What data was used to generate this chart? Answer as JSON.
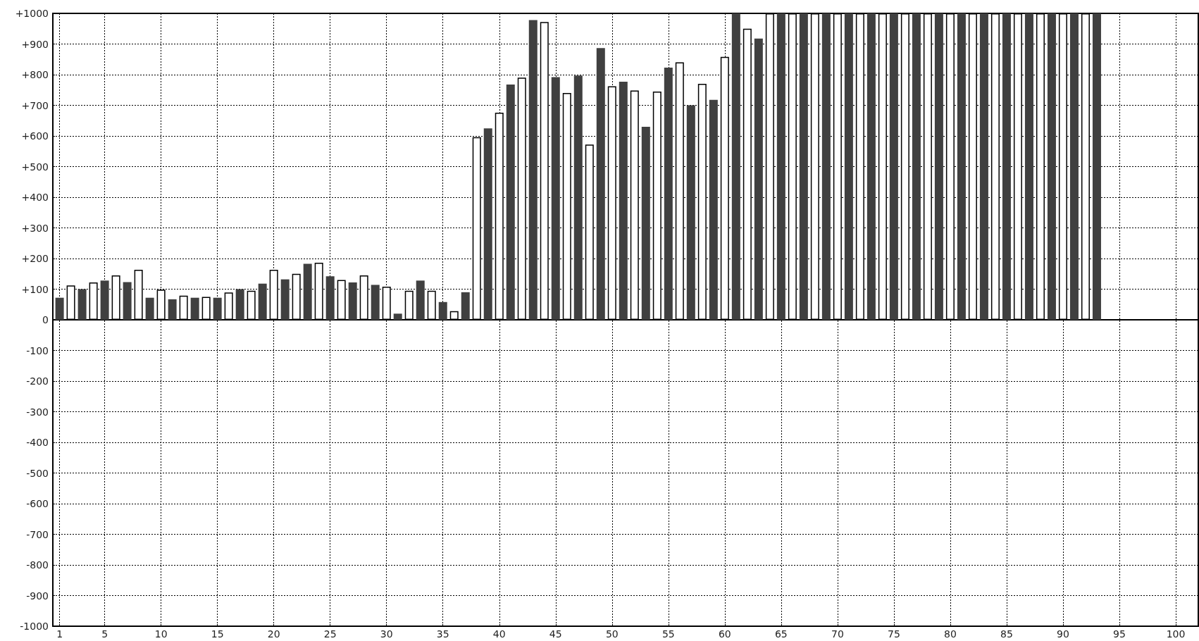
{
  "chart_data": {
    "type": "bar",
    "x": [
      1,
      2,
      3,
      4,
      5,
      6,
      7,
      8,
      9,
      10,
      11,
      12,
      13,
      14,
      15,
      16,
      17,
      18,
      19,
      20,
      21,
      22,
      23,
      24,
      25,
      26,
      27,
      28,
      29,
      30,
      31,
      32,
      33,
      34,
      35,
      36,
      37,
      38,
      39,
      40,
      41,
      42,
      43,
      44,
      45,
      46,
      47,
      48,
      49,
      50,
      51,
      52,
      53,
      54,
      55,
      56,
      57,
      58,
      59,
      60,
      61,
      62,
      63,
      64,
      65,
      66,
      67,
      68,
      69,
      70,
      71,
      72,
      73,
      74,
      75,
      76,
      77,
      78,
      79,
      80,
      81,
      82,
      83,
      84,
      85,
      86,
      87,
      88,
      89,
      90,
      91,
      92,
      93
    ],
    "values": [
      72,
      112,
      100,
      122,
      128,
      145,
      123,
      163,
      72,
      98,
      67,
      79,
      72,
      75,
      72,
      89,
      100,
      95,
      118,
      163,
      132,
      150,
      183,
      186,
      142,
      130,
      122,
      145,
      114,
      108,
      20,
      95,
      128,
      95,
      58,
      28,
      90,
      596,
      625,
      676,
      768,
      790,
      978,
      972,
      792,
      740,
      797,
      572,
      887,
      762,
      777,
      748,
      630,
      745,
      823,
      840,
      700,
      770,
      718,
      858,
      1000,
      950,
      918,
      1000,
      1000,
      1000,
      1000,
      1000,
      1000,
      1000,
      1000,
      1000,
      1000,
      1000,
      1000,
      1000,
      1000,
      1000,
      1000,
      1000,
      1000,
      1000,
      1000,
      1000,
      1000,
      1000,
      1000,
      1000,
      1000,
      1000,
      1000,
      1000,
      1000
    ],
    "colors": [
      "#404040",
      "#ffffff",
      "#404040",
      "#ffffff",
      "#404040",
      "#ffffff",
      "#404040",
      "#ffffff",
      "#404040",
      "#ffffff",
      "#404040",
      "#ffffff",
      "#404040",
      "#ffffff",
      "#404040",
      "#ffffff",
      "#404040",
      "#ffffff",
      "#404040",
      "#ffffff",
      "#404040",
      "#ffffff",
      "#404040",
      "#ffffff",
      "#404040",
      "#ffffff",
      "#404040",
      "#ffffff",
      "#404040",
      "#ffffff",
      "#404040",
      "#ffffff",
      "#404040",
      "#ffffff",
      "#404040",
      "#ffffff",
      "#404040",
      "#ffffff",
      "#404040",
      "#ffffff",
      "#404040",
      "#ffffff",
      "#404040",
      "#ffffff",
      "#404040",
      "#ffffff",
      "#404040",
      "#ffffff",
      "#404040",
      "#ffffff",
      "#404040",
      "#ffffff",
      "#404040",
      "#ffffff",
      "#404040",
      "#ffffff",
      "#404040",
      "#ffffff",
      "#404040",
      "#ffffff",
      "#404040",
      "#ffffff",
      "#404040",
      "#ffffff",
      "#404040",
      "#ffffff",
      "#404040",
      "#ffffff",
      "#404040",
      "#ffffff",
      "#404040",
      "#ffffff",
      "#404040",
      "#ffffff",
      "#404040",
      "#ffffff",
      "#404040",
      "#ffffff",
      "#404040",
      "#ffffff",
      "#404040",
      "#ffffff",
      "#404040",
      "#ffffff",
      "#404040",
      "#ffffff",
      "#404040",
      "#ffffff",
      "#404040",
      "#ffffff",
      "#404040",
      "#ffffff",
      "#404040"
    ],
    "xlim": [
      0.4,
      102
    ],
    "xticks": [
      1,
      5,
      10,
      15,
      20,
      25,
      30,
      35,
      40,
      45,
      50,
      55,
      60,
      65,
      70,
      75,
      80,
      85,
      90,
      95,
      100
    ],
    "ylim": [
      -1000,
      1000
    ],
    "yticks": [
      -1000,
      -900,
      -800,
      -700,
      -600,
      -500,
      -400,
      -300,
      -200,
      -100,
      0,
      {
        "value": 100,
        "label": "+100"
      },
      {
        "value": 200,
        "label": "+200"
      },
      {
        "value": 300,
        "label": "+300"
      },
      {
        "value": 400,
        "label": "+400"
      },
      {
        "value": 500,
        "label": "+500"
      },
      {
        "value": 600,
        "label": "+600"
      },
      {
        "value": 700,
        "label": "+700"
      },
      {
        "value": 800,
        "label": "+800"
      },
      {
        "value": 900,
        "label": "+900"
      },
      {
        "value": 1000,
        "label": "+1000"
      }
    ],
    "grid": true
  }
}
